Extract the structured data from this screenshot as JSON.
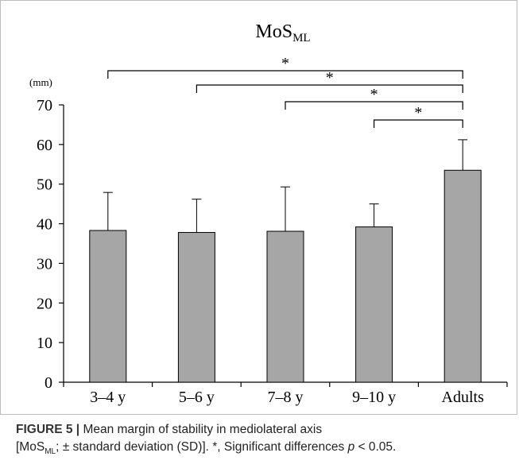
{
  "chart_data": {
    "type": "bar",
    "title": "MoS",
    "title_sub": "ML",
    "unit_label": "(mm)",
    "categories": [
      "3–4 y",
      "5–6 y",
      "7–8 y",
      "9–10 y",
      "Adults"
    ],
    "values": [
      38.3,
      37.8,
      38.1,
      39.2,
      53.5
    ],
    "sd_upper": [
      47.9,
      46.2,
      49.3,
      45.0,
      61.2
    ],
    "ylim": [
      0,
      70
    ],
    "yticks": [
      0,
      10,
      20,
      30,
      40,
      50,
      60,
      70
    ],
    "grid": false,
    "bar_color": "#a6a6a6",
    "significance": [
      {
        "from": "3–4 y",
        "to": "Adults",
        "label": "*"
      },
      {
        "from": "5–6 y",
        "to": "Adults",
        "label": "*"
      },
      {
        "from": "7–8 y",
        "to": "Adults",
        "label": "*"
      },
      {
        "from": "9–10 y",
        "to": "Adults",
        "label": "*"
      }
    ]
  },
  "caption": {
    "label": "FIGURE 5 | ",
    "line1": "Mean margin of stability in mediolateral axis",
    "line2_prefix": "[MoS",
    "line2_sub": "ML",
    "line2_mid": "; ± standard deviation (SD)]. *, Significant differences ",
    "line2_p": "p",
    "line2_end": " < 0.05."
  }
}
